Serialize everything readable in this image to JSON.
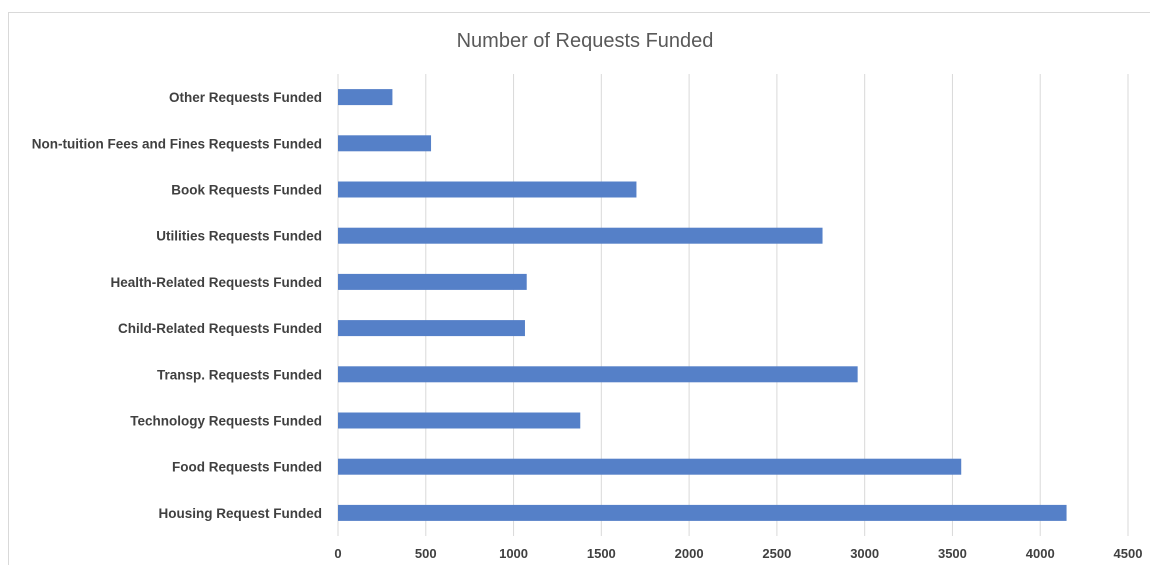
{
  "chart_data": {
    "type": "bar",
    "orientation": "horizontal",
    "title": "Number of Requests Funded",
    "categories": [
      "Other Requests Funded",
      "Non-tuition Fees and Fines Requests Funded",
      "Book Requests Funded",
      "Utilities Requests Funded",
      "Health-Related Requests Funded",
      "Child-Related Requests Funded",
      "Transp. Requests Funded",
      "Technology Requests Funded",
      "Food Requests Funded",
      "Housing Request Funded"
    ],
    "values": [
      310,
      530,
      1700,
      2760,
      1075,
      1065,
      2960,
      1380,
      3550,
      4150
    ],
    "xlim": [
      0,
      4500
    ],
    "xticks": [
      "0",
      "500",
      "1000",
      "1500",
      "2000",
      "2500",
      "3000",
      "3500",
      "4000",
      "4500"
    ],
    "grid": "vertical",
    "legend": "none",
    "bar_color": "#5580c8",
    "grid_color": "#d9d9d9"
  }
}
